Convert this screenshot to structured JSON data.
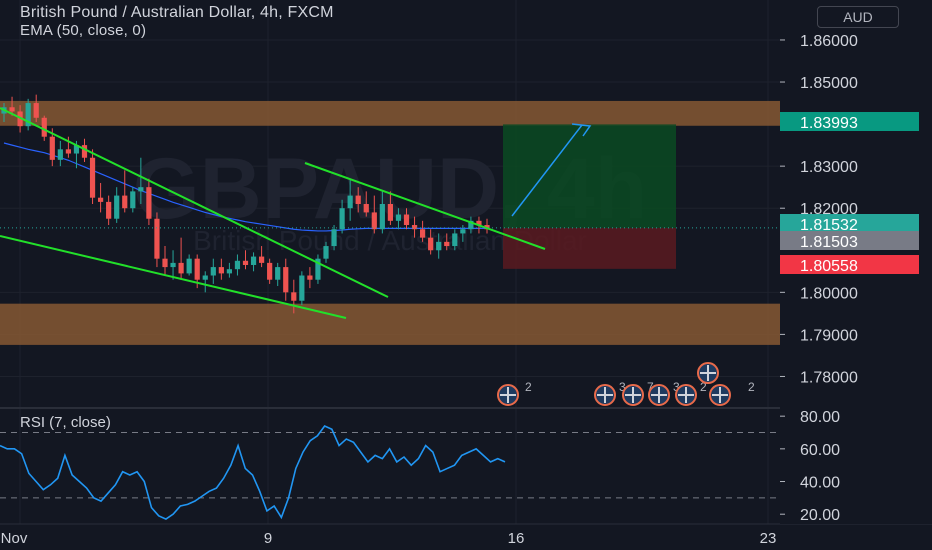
{
  "header": {
    "title": "British Pound / Australian Dollar, 4h, FXCM",
    "indicator": "EMA (50, close, 0)",
    "currency_button": "AUD",
    "watermark": "GBPAUD, 4h",
    "watermark_sub": "British Pound / Australian Dollar"
  },
  "chart_data": [
    {
      "type": "candlestick",
      "title": "British Pound / Australian Dollar, 4h, FXCM",
      "y_ticks": [
        "1.86000",
        "1.85000",
        "1.83000",
        "1.82000",
        "1.80000",
        "1.79000",
        "1.78000"
      ],
      "ylim": [
        1.7725,
        1.8695
      ],
      "x_ticks": [
        "Nov",
        "9",
        "16",
        "23"
      ],
      "price_labels": [
        {
          "text": "1.83993",
          "value": 1.83993,
          "color": "#089981"
        },
        {
          "text": "1.81532",
          "value": 1.81532,
          "color": "#26a69a"
        },
        {
          "text": "1.81503",
          "value": 1.81503,
          "color": "#787b86"
        },
        {
          "text": "1.80558",
          "value": 1.80558,
          "color": "#f23645"
        }
      ],
      "zones": [
        {
          "name": "resistance",
          "from": 1.8396,
          "to": 1.8455,
          "color": "#8a5a33"
        },
        {
          "name": "support",
          "from": 1.7875,
          "to": 1.7973,
          "color": "#8a5a33"
        }
      ],
      "position": {
        "entry": 1.81532,
        "target": 1.83993,
        "stop": 1.80558
      },
      "candles": [
        [
          1.8425,
          1.845,
          1.8405,
          1.844
        ],
        [
          1.844,
          1.8465,
          1.842,
          1.843
        ],
        [
          1.843,
          1.8445,
          1.838,
          1.8395
        ],
        [
          1.8395,
          1.846,
          1.8385,
          1.845
        ],
        [
          1.845,
          1.847,
          1.8405,
          1.8415
        ],
        [
          1.8415,
          1.842,
          1.836,
          1.837
        ],
        [
          1.837,
          1.839,
          1.83,
          1.8315
        ],
        [
          1.8315,
          1.836,
          1.83,
          1.834
        ],
        [
          1.834,
          1.837,
          1.832,
          1.833
        ],
        [
          1.833,
          1.836,
          1.8295,
          1.835
        ],
        [
          1.835,
          1.8365,
          1.831,
          1.832
        ],
        [
          1.832,
          1.834,
          1.821,
          1.8225
        ],
        [
          1.8225,
          1.826,
          1.819,
          1.8215
        ],
        [
          1.8215,
          1.823,
          1.816,
          1.8175
        ],
        [
          1.8175,
          1.825,
          1.8165,
          1.823
        ],
        [
          1.823,
          1.829,
          1.819,
          1.82
        ],
        [
          1.82,
          1.825,
          1.819,
          1.824
        ],
        [
          1.824,
          1.832,
          1.821,
          1.825
        ],
        [
          1.825,
          1.827,
          1.816,
          1.8175
        ],
        [
          1.8175,
          1.819,
          1.806,
          1.808
        ],
        [
          1.808,
          1.811,
          1.804,
          1.806
        ],
        [
          1.806,
          1.81,
          1.803,
          1.807
        ],
        [
          1.807,
          1.813,
          1.803,
          1.8045
        ],
        [
          1.8045,
          1.809,
          1.804,
          1.808
        ],
        [
          1.808,
          1.809,
          1.801,
          1.803
        ],
        [
          1.803,
          1.805,
          1.8,
          1.804
        ],
        [
          1.804,
          1.808,
          1.802,
          1.806
        ],
        [
          1.806,
          1.808,
          1.803,
          1.8045
        ],
        [
          1.8045,
          1.807,
          1.8035,
          1.8055
        ],
        [
          1.8055,
          1.809,
          1.804,
          1.8075
        ],
        [
          1.8075,
          1.81,
          1.8055,
          1.8065
        ],
        [
          1.8065,
          1.8095,
          1.805,
          1.8085
        ],
        [
          1.8085,
          1.811,
          1.806,
          1.807
        ],
        [
          1.807,
          1.808,
          1.802,
          1.803
        ],
        [
          1.803,
          1.807,
          1.8015,
          1.806
        ],
        [
          1.806,
          1.808,
          1.798,
          1.8
        ],
        [
          1.8,
          1.803,
          1.795,
          1.798
        ],
        [
          1.798,
          1.805,
          1.797,
          1.804
        ],
        [
          1.804,
          1.806,
          1.801,
          1.803
        ],
        [
          1.803,
          1.809,
          1.802,
          1.808
        ],
        [
          1.808,
          1.812,
          1.807,
          1.811
        ],
        [
          1.811,
          1.816,
          1.81,
          1.815
        ],
        [
          1.815,
          1.822,
          1.814,
          1.82
        ],
        [
          1.82,
          1.827,
          1.817,
          1.823
        ],
        [
          1.823,
          1.825,
          1.819,
          1.821
        ],
        [
          1.821,
          1.824,
          1.818,
          1.819
        ],
        [
          1.819,
          1.823,
          1.814,
          1.815
        ],
        [
          1.815,
          1.824,
          1.814,
          1.821
        ],
        [
          1.821,
          1.824,
          1.816,
          1.817
        ],
        [
          1.817,
          1.82,
          1.815,
          1.8185
        ],
        [
          1.8185,
          1.82,
          1.815,
          1.816
        ],
        [
          1.816,
          1.818,
          1.813,
          1.815
        ],
        [
          1.815,
          1.817,
          1.812,
          1.813
        ],
        [
          1.813,
          1.815,
          1.809,
          1.81
        ],
        [
          1.81,
          1.814,
          1.808,
          1.812
        ],
        [
          1.812,
          1.814,
          1.81,
          1.811
        ],
        [
          1.811,
          1.815,
          1.81,
          1.814
        ],
        [
          1.814,
          1.816,
          1.812,
          1.815
        ],
        [
          1.815,
          1.818,
          1.814,
          1.817
        ],
        [
          1.817,
          1.818,
          1.814,
          1.816
        ],
        [
          1.816,
          1.8175,
          1.814,
          1.815
        ]
      ],
      "ema": [
        1.8355,
        1.835,
        1.8345,
        1.834,
        1.8336,
        1.8332,
        1.8326,
        1.832,
        1.8314,
        1.8306,
        1.8298,
        1.829,
        1.8282,
        1.8274,
        1.8266,
        1.8258,
        1.825,
        1.8242,
        1.8235,
        1.8228,
        1.8221,
        1.8214,
        1.8208,
        1.8202,
        1.8196,
        1.819,
        1.8185,
        1.818,
        1.8176,
        1.8172,
        1.8168,
        1.8165,
        1.8162,
        1.8159,
        1.8156,
        1.8153,
        1.815,
        1.8148,
        1.8147,
        1.8146,
        1.8146,
        1.8147,
        1.8148,
        1.815,
        1.8151,
        1.8152,
        1.8152,
        1.8152,
        1.8152,
        1.8152,
        1.8152,
        1.8152,
        1.8152,
        1.8152,
        1.8152,
        1.8152,
        1.8152,
        1.8152,
        1.8152,
        1.8152,
        1.8152
      ]
    },
    {
      "type": "line",
      "title": "RSI (7, close)",
      "y_ticks": [
        "80.00",
        "60.00",
        "40.00",
        "20.00"
      ],
      "ylim": [
        14,
        85
      ],
      "bands": [
        70,
        30
      ],
      "values": [
        62,
        60,
        60,
        57,
        45,
        40,
        35,
        38,
        42,
        56,
        44,
        40,
        36,
        30,
        28,
        33,
        38,
        46,
        44,
        46,
        40,
        24,
        19,
        17,
        20,
        25,
        26,
        28,
        31,
        34,
        36,
        42,
        50,
        62,
        48,
        44,
        34,
        22,
        25,
        18,
        30,
        48,
        58,
        65,
        68,
        74,
        72,
        62,
        66,
        64,
        58,
        52,
        56,
        54,
        60,
        52,
        55,
        50,
        54,
        62,
        58,
        46,
        48,
        50,
        56,
        58,
        60,
        56,
        52,
        54,
        52
      ]
    }
  ],
  "events": {
    "group1": "2",
    "group2": [
      "3",
      "7",
      "3",
      "2"
    ],
    "group3": "2"
  }
}
